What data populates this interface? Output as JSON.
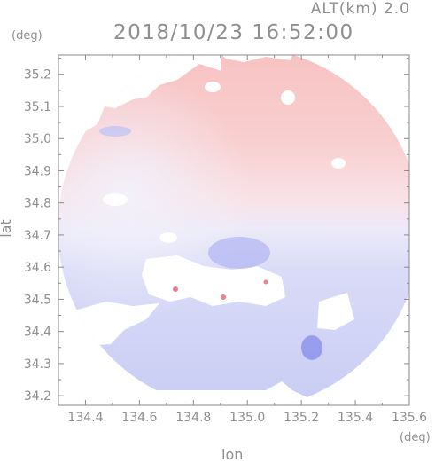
{
  "header": {
    "altitude": "ALT(km) 2.0",
    "timestamp": "2018/10/23 16:52:00"
  },
  "chart_data": {
    "type": "heatmap",
    "title": "2018/10/23 16:52:00",
    "subtitle": "ALT(km) 2.0",
    "xlabel": "lon",
    "ylabel": "lat",
    "xunit": "(deg)",
    "yunit": "(deg)",
    "xlim": [
      134.3,
      135.6
    ],
    "ylim": [
      34.17,
      35.26
    ],
    "xticks": [
      134.4,
      134.6,
      134.8,
      135.0,
      135.2,
      135.4,
      135.6
    ],
    "xticklabels": [
      "134.4",
      "134.6",
      "134.8",
      "135.0",
      "135.2",
      "135.4",
      "135.6"
    ],
    "yticks": [
      34.2,
      34.3,
      34.4,
      34.5,
      34.6,
      34.7,
      34.8,
      34.9,
      35.0,
      35.1,
      35.2
    ],
    "yticklabels": [
      "34.2",
      "34.3",
      "34.4",
      "34.5",
      "34.6",
      "34.7",
      "34.8",
      "34.9",
      "35.0",
      "35.1",
      "35.2"
    ],
    "radar_center": [
      134.97,
      34.72
    ],
    "colors": {
      "positive": "#f4a3a3",
      "negative": "#a8acf0",
      "neutral": "#f4f3fb",
      "axis": "#8a8a8a"
    },
    "regions": [
      {
        "name": "north",
        "sign": "positive",
        "lat_range": [
          34.78,
          35.26
        ],
        "lon_range": [
          134.55,
          135.35
        ]
      },
      {
        "name": "south",
        "sign": "negative",
        "lat_range": [
          34.17,
          34.78
        ],
        "lon_range": [
          134.35,
          135.33
        ]
      }
    ]
  }
}
